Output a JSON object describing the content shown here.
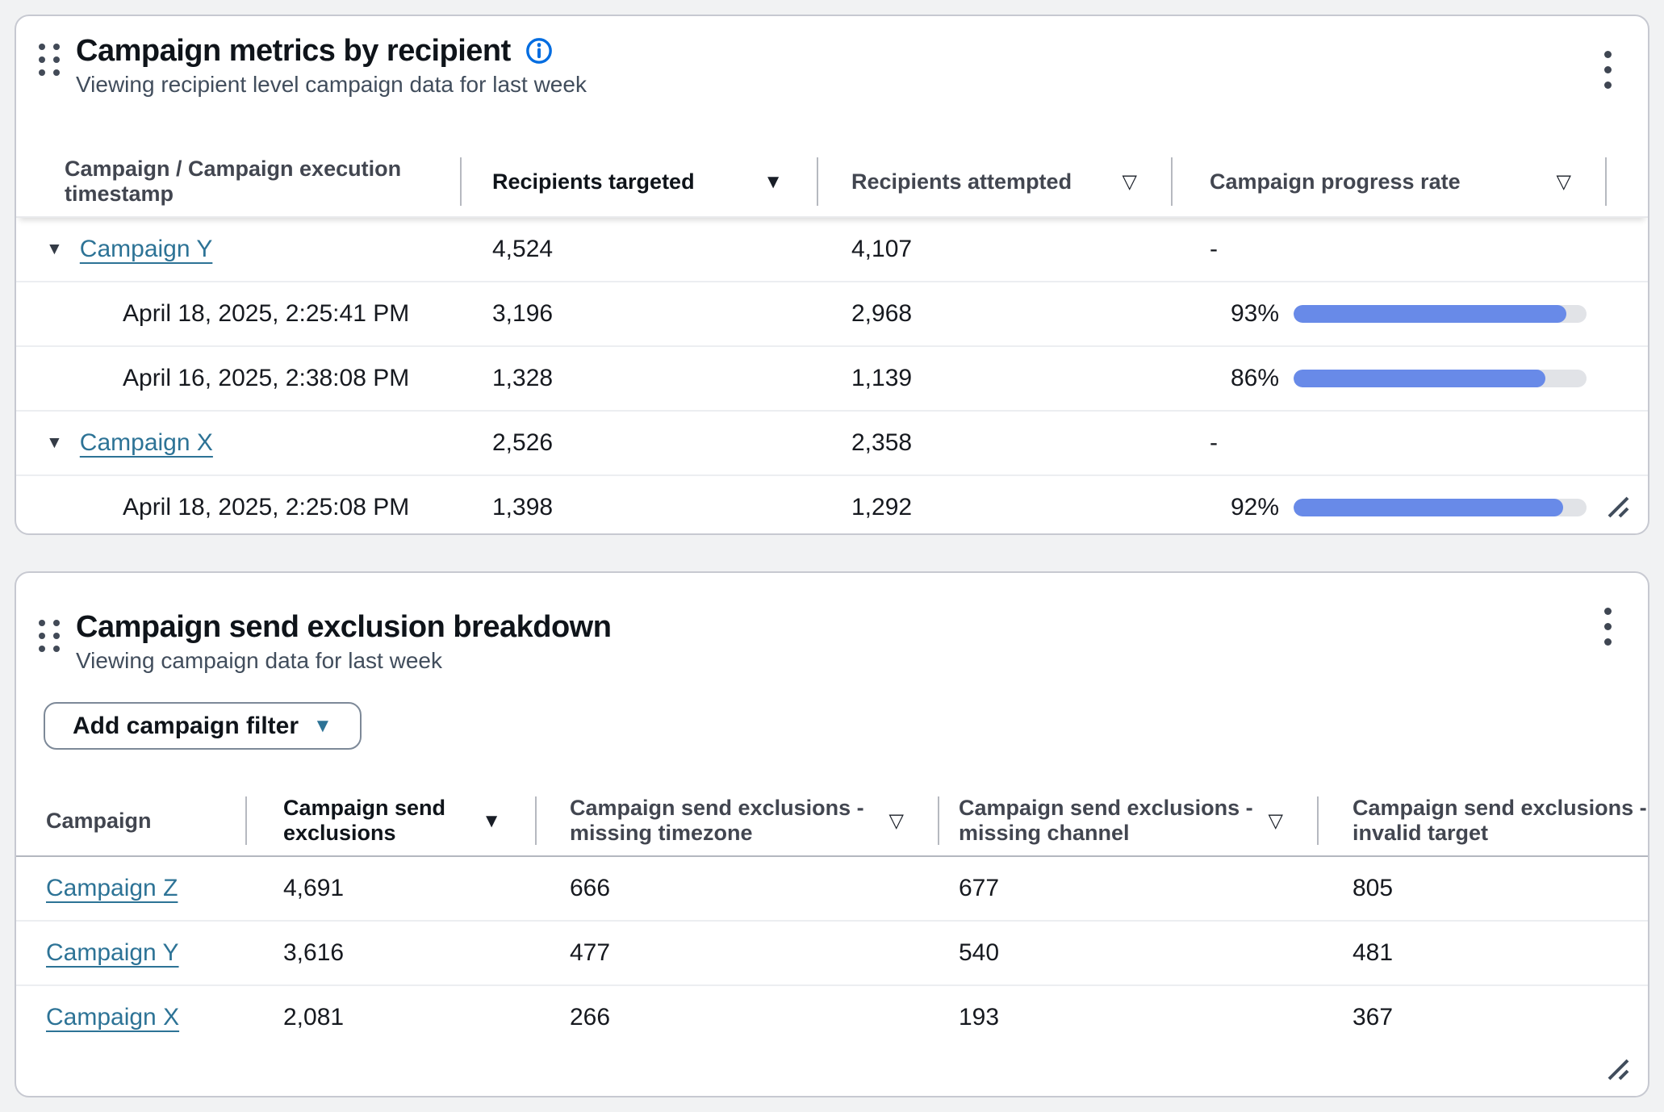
{
  "colors": {
    "progress_fill": "#688ae8",
    "link_teal": "#2d7396",
    "info_blue": "#006ce0"
  },
  "card1": {
    "title": "Campaign metrics by recipient",
    "subtitle": "Viewing recipient level campaign data for last week",
    "columns": [
      {
        "label": "Campaign / Campaign execution timestamp",
        "icon": ""
      },
      {
        "label": "Recipients targeted",
        "icon": "▼"
      },
      {
        "label": "Recipients attempted",
        "icon": "▽"
      },
      {
        "label": "Campaign progress rate",
        "icon": "▽"
      }
    ],
    "rows": [
      {
        "kind": "campaign",
        "expand_icon": "▼",
        "name": "Campaign Y",
        "targeted": "4,524",
        "attempted": "4,107",
        "progress_text": "-"
      },
      {
        "kind": "execution",
        "name": "April 18, 2025, 2:25:41 PM",
        "targeted": "3,196",
        "attempted": "2,968",
        "progress_label": "93%",
        "progress_pct": 93
      },
      {
        "kind": "execution",
        "name": "April 16, 2025, 2:38:08 PM",
        "targeted": "1,328",
        "attempted": "1,139",
        "progress_label": "86%",
        "progress_pct": 86
      },
      {
        "kind": "campaign",
        "expand_icon": "▼",
        "name": "Campaign X",
        "targeted": "2,526",
        "attempted": "2,358",
        "progress_text": "-"
      },
      {
        "kind": "execution",
        "name": "April 18, 2025, 2:25:08 PM",
        "targeted": "1,398",
        "attempted": "1,292",
        "progress_label": "92%",
        "progress_pct": 92
      }
    ]
  },
  "card2": {
    "title": "Campaign send exclusion breakdown",
    "subtitle": "Viewing campaign data for last week",
    "filter_button": {
      "label": "Add campaign filter",
      "caret": "▼"
    },
    "columns": [
      {
        "label": "Campaign",
        "icon": ""
      },
      {
        "label": "Campaign send exclusions",
        "icon": "▼"
      },
      {
        "label": "Campaign send exclusions - missing timezone",
        "icon": "▽"
      },
      {
        "label": "Campaign send exclusions - missing channel",
        "icon": "▽"
      },
      {
        "label": "Campaign send exclusions - invalid target",
        "icon": ""
      }
    ],
    "rows": [
      {
        "name": "Campaign Z",
        "exclusions": "4,691",
        "missing_timezone": "666",
        "missing_channel": "677",
        "invalid_target": "805"
      },
      {
        "name": "Campaign Y",
        "exclusions": "3,616",
        "missing_timezone": "477",
        "missing_channel": "540",
        "invalid_target": "481"
      },
      {
        "name": "Campaign X",
        "exclusions": "2,081",
        "missing_timezone": "266",
        "missing_channel": "193",
        "invalid_target": "367"
      }
    ]
  }
}
